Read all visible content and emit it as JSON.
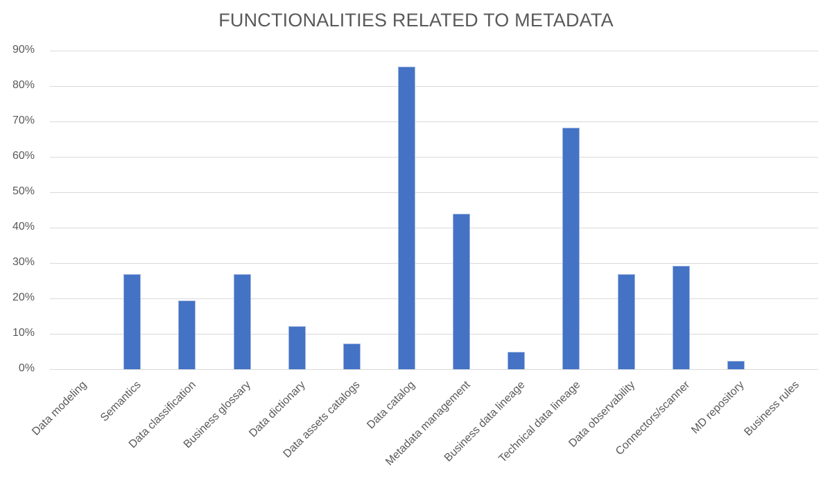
{
  "chart_data": {
    "type": "bar",
    "title": "FUNCTIONALITIES RELATED TO METADATA",
    "xlabel": "",
    "ylabel": "",
    "ylim": [
      0,
      0.9
    ],
    "yticks": [
      "0%",
      "10%",
      "20%",
      "30%",
      "40%",
      "50%",
      "60%",
      "70%",
      "80%",
      "90%"
    ],
    "grid": true,
    "legend": null,
    "bar_color": "#4472c4",
    "categories": [
      "Data modeling",
      "Semantics",
      "Data classification",
      "Business glossary",
      "Data dictionary",
      "Data assets catalogs",
      "Data catalog",
      "Metadata management",
      "Business data lineage",
      "Technical data lineage",
      "Data observability",
      "Connectors/scanner",
      "MD repository",
      "Business rules"
    ],
    "values": [
      0.0,
      0.268,
      0.195,
      0.268,
      0.122,
      0.073,
      0.854,
      0.439,
      0.049,
      0.683,
      0.268,
      0.293,
      0.024,
      0.0
    ]
  }
}
